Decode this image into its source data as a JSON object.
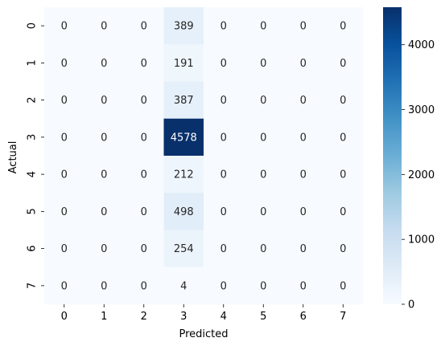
{
  "chart_data": {
    "type": "heatmap",
    "title": "",
    "xlabel": "Predicted",
    "ylabel": "Actual",
    "x_categories": [
      "0",
      "1",
      "2",
      "3",
      "4",
      "5",
      "6",
      "7"
    ],
    "y_categories": [
      "0",
      "1",
      "2",
      "3",
      "4",
      "5",
      "6",
      "7"
    ],
    "values": [
      [
        0,
        0,
        0,
        389,
        0,
        0,
        0,
        0
      ],
      [
        0,
        0,
        0,
        191,
        0,
        0,
        0,
        0
      ],
      [
        0,
        0,
        0,
        387,
        0,
        0,
        0,
        0
      ],
      [
        0,
        0,
        0,
        4578,
        0,
        0,
        0,
        0
      ],
      [
        0,
        0,
        0,
        212,
        0,
        0,
        0,
        0
      ],
      [
        0,
        0,
        0,
        498,
        0,
        0,
        0,
        0
      ],
      [
        0,
        0,
        0,
        254,
        0,
        0,
        0,
        0
      ],
      [
        0,
        0,
        0,
        4,
        0,
        0,
        0,
        0
      ]
    ],
    "colormap": "Blues",
    "colorbar": {
      "range": [
        0,
        4578
      ],
      "ticks": [
        "0",
        "1000",
        "2000",
        "3000",
        "4000"
      ]
    },
    "grid": false
  }
}
